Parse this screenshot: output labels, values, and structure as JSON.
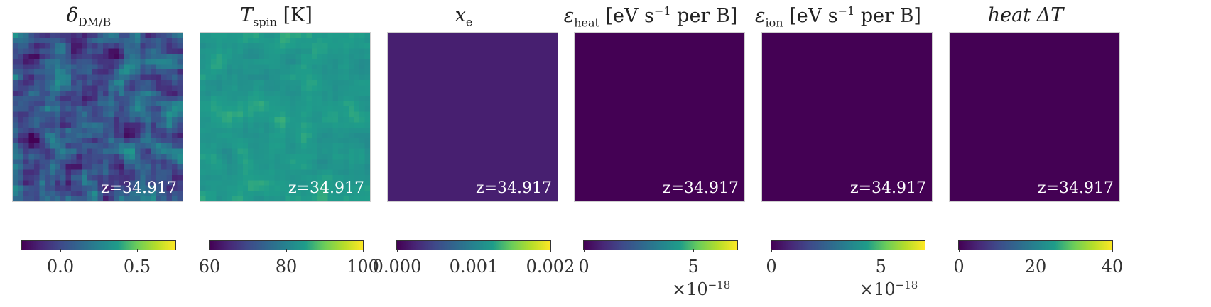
{
  "colormap": [
    "#440154",
    "#482777",
    "#3f4a8a",
    "#31678e",
    "#26838f",
    "#1f9d8a",
    "#6cce5a",
    "#b6de2b",
    "#fee825"
  ],
  "chart_data": [
    {
      "type": "heatmap",
      "title": "δ_DM/B",
      "title_parts": {
        "sym": "δ",
        "sub": "DM/B",
        "rest": ""
      },
      "annotation": "z=34.917",
      "field": {
        "kind": "noise",
        "mean": 0.05,
        "spread": 0.28
      },
      "clim": [
        -0.25,
        0.75
      ],
      "ticks": [
        0.0,
        0.5
      ],
      "tick_labels": [
        "0.0",
        "0.5"
      ],
      "offset_text": ""
    },
    {
      "type": "heatmap",
      "title": "T_spin [K]",
      "title_parts": {
        "sym": "T",
        "sub": "spin",
        "rest": " [K]"
      },
      "annotation": "z=34.917",
      "field": {
        "kind": "noise",
        "mean": 84,
        "spread": 2.5
      },
      "clim": [
        60,
        100
      ],
      "ticks": [
        60,
        80,
        100
      ],
      "tick_labels": [
        "60",
        "80",
        "100"
      ],
      "offset_text": ""
    },
    {
      "type": "heatmap",
      "title": "x_e",
      "title_parts": {
        "sym": "x",
        "sub": "e",
        "rest": ""
      },
      "annotation": "z=34.917",
      "field": {
        "kind": "uniform",
        "value": 0.0002
      },
      "clim": [
        0.0,
        0.002
      ],
      "ticks": [
        0.0,
        0.001,
        0.002
      ],
      "tick_labels": [
        "0.000",
        "0.001",
        "0.002"
      ],
      "offset_text": ""
    },
    {
      "type": "heatmap",
      "title": "ε_heat [eV s^-1 per B]",
      "title_parts": {
        "sym": "ε",
        "sub": "heat",
        "rest": " [eV s",
        "sup": "−1",
        "rest2": " per B]"
      },
      "annotation": "z=34.917",
      "field": {
        "kind": "uniform",
        "value": 0
      },
      "clim": [
        0,
        7
      ],
      "ticks": [
        0,
        5
      ],
      "tick_labels": [
        "0",
        "5"
      ],
      "offset_text": "×10",
      "offset_exp": "−18"
    },
    {
      "type": "heatmap",
      "title": "ε_ion [eV s^-1 per B]",
      "title_parts": {
        "sym": "ε",
        "sub": "ion",
        "rest": " [eV s",
        "sup": "−1",
        "rest2": " per B]"
      },
      "annotation": "z=34.917",
      "field": {
        "kind": "uniform",
        "value": 0
      },
      "clim": [
        0,
        7
      ],
      "ticks": [
        0,
        5
      ],
      "tick_labels": [
        "0",
        "5"
      ],
      "offset_text": "×10",
      "offset_exp": "−18"
    },
    {
      "type": "heatmap",
      "title": "heat ΔT",
      "title_parts": {
        "sym": "heat ΔT",
        "sub": "",
        "rest": ""
      },
      "annotation": "z=34.917",
      "field": {
        "kind": "uniform",
        "value": 0
      },
      "clim": [
        0,
        40
      ],
      "ticks": [
        0,
        20,
        40
      ],
      "tick_labels": [
        "0",
        "20",
        "40"
      ],
      "offset_text": ""
    }
  ]
}
